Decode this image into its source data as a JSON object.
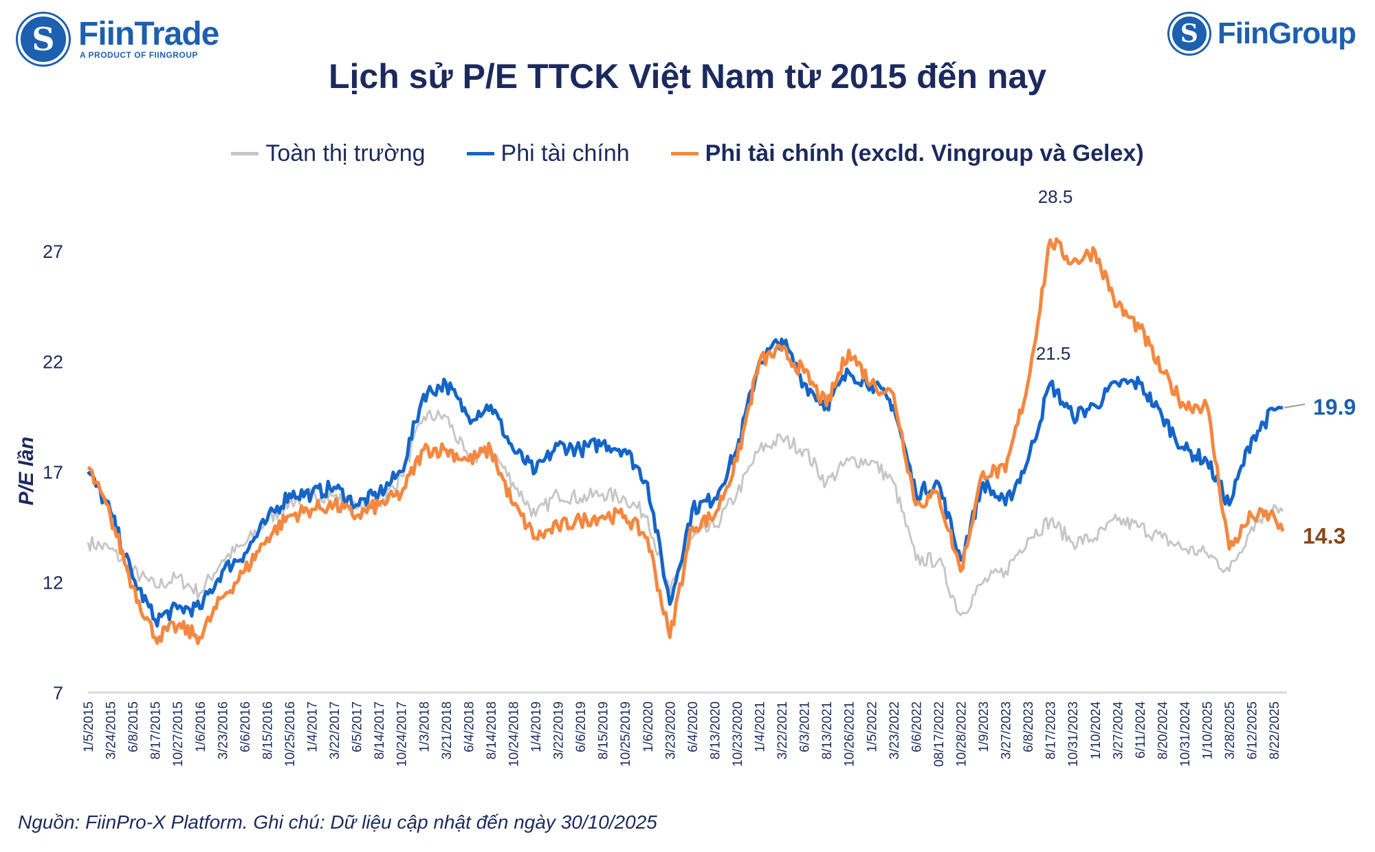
{
  "header": {
    "left_logo": {
      "name": "FiinTrade",
      "tagline": "A PRODUCT OF FIINGROUP",
      "icon": "fiin-s-logo-icon"
    },
    "right_logo": {
      "name": "FiinGroup",
      "icon": "fiin-s-logo-icon"
    }
  },
  "footer": {
    "source": "Nguồn: FiinPro-X Platform. Ghi chú: Dữ liệu cập nhật đến ngày 30/10/2025"
  },
  "colors": {
    "text": "#1b2a5e",
    "blue": "#1565c8",
    "orange": "#f5873f",
    "gray": "#c6c6c6",
    "brown": "#8b4513"
  },
  "chart_data": {
    "type": "line",
    "title": "Lịch sử P/E TTCK Việt Nam từ 2015 đến nay",
    "ylabel": "P/E lần",
    "xlabel": "",
    "ylim": [
      7,
      29
    ],
    "yticks": [
      7,
      12,
      17,
      22,
      27
    ],
    "grid": false,
    "legend_position": "top",
    "x": [
      "1/5/2015",
      "3/24/2015",
      "6/8/2015",
      "8/17/2015",
      "10/27/2015",
      "1/6/2016",
      "3/23/2016",
      "6/6/2016",
      "8/15/2016",
      "10/25/2016",
      "1/4/2017",
      "3/22/2017",
      "6/5/2017",
      "8/14/2017",
      "10/24/2017",
      "1/3/2018",
      "3/21/2018",
      "6/4/2018",
      "8/14/2018",
      "10/24/2018",
      "1/4/2019",
      "3/22/2019",
      "6/6/2019",
      "8/15/2019",
      "10/25/2019",
      "1/6/2020",
      "3/23/2020",
      "6/4/2020",
      "8/13/2020",
      "10/23/2020",
      "1/4/2021",
      "3/22/2021",
      "6/3/2021",
      "8/13/2021",
      "10/26/2021",
      "1/5/2022",
      "3/23/2022",
      "6/6/2022",
      "08/17/2022",
      "10/28/2022",
      "1/9/2023",
      "3/27/2023",
      "6/8/2023",
      "8/17/2023",
      "10/31/2023",
      "1/10/2024",
      "3/27/2024",
      "6/11/2024",
      "8/20/2024",
      "10/31/2024",
      "1/10/2025",
      "3/28/2025",
      "6/12/2025",
      "8/22/2025",
      "30/10/2025"
    ],
    "x_tick_count": 54,
    "series": [
      {
        "name": "Toàn thị trường",
        "color": "#c6c6c6",
        "values": [
          13.8,
          13.5,
          12.5,
          11.8,
          12.2,
          11.5,
          13.0,
          13.7,
          14.8,
          15.6,
          16.0,
          15.9,
          15.3,
          15.5,
          16.8,
          19.5,
          19.5,
          17.5,
          18.0,
          16.5,
          15.0,
          16.0,
          15.8,
          16.0,
          15.8,
          15.0,
          11.5,
          14.0,
          14.5,
          16.0,
          18.0,
          18.5,
          18.0,
          16.5,
          17.5,
          17.5,
          16.5,
          13.0,
          13.0,
          10.5,
          12.0,
          12.5,
          14.0,
          14.8,
          13.8,
          14.0,
          14.8,
          14.5,
          14.0,
          13.5,
          13.3,
          12.5,
          14.5,
          15.5,
          15.2
        ]
      },
      {
        "name": "Phi tài chính",
        "color": "#1565c8",
        "values": [
          17.0,
          15.2,
          12.2,
          10.3,
          10.8,
          10.8,
          12.5,
          13.3,
          14.8,
          16.0,
          16.0,
          16.3,
          15.5,
          16.0,
          17.0,
          20.5,
          21.0,
          19.5,
          20.0,
          18.0,
          17.0,
          18.2,
          18.0,
          18.3,
          18.0,
          16.5,
          11.0,
          15.3,
          15.8,
          18.0,
          22.0,
          23.0,
          21.0,
          20.0,
          21.5,
          21.0,
          20.0,
          16.0,
          16.5,
          13.0,
          16.5,
          15.5,
          17.5,
          21.0,
          19.5,
          20.0,
          21.0,
          21.0,
          19.5,
          18.0,
          17.5,
          15.5,
          18.5,
          19.8,
          19.9
        ]
      },
      {
        "name": "Phi tài chính (excld. Vingroup và Gelex)",
        "color": "#f5873f",
        "values": [
          17.2,
          15.0,
          11.8,
          9.5,
          10.0,
          9.5,
          11.3,
          12.5,
          14.0,
          15.0,
          15.3,
          15.5,
          15.0,
          15.5,
          16.0,
          18.0,
          18.0,
          17.5,
          18.0,
          15.5,
          14.0,
          14.5,
          14.8,
          15.0,
          15.0,
          14.0,
          9.5,
          14.5,
          15.0,
          17.5,
          22.0,
          22.5,
          21.5,
          20.0,
          22.5,
          21.0,
          20.5,
          15.5,
          16.0,
          12.5,
          17.0,
          17.0,
          21.0,
          27.5,
          26.5,
          27.0,
          24.5,
          23.5,
          21.5,
          20.0,
          20.0,
          13.5,
          15.0,
          15.0,
          14.3
        ]
      }
    ],
    "annotations": [
      {
        "text": "28.5",
        "series": "Phi tài chính (excld. Vingroup và Gelex)",
        "x": "8/17/2023",
        "value": 28.5
      },
      {
        "text": "21.5",
        "series": "Phi tài chính",
        "x": "8/17/2023",
        "value": 21.5
      },
      {
        "text": "19.9",
        "series": "Phi tài chính",
        "x": "30/10/2025",
        "value": 19.9
      },
      {
        "text": "14.3",
        "series": "Phi tài chính (excld. Vingroup và Gelex)",
        "x": "30/10/2025",
        "value": 14.3
      }
    ]
  }
}
